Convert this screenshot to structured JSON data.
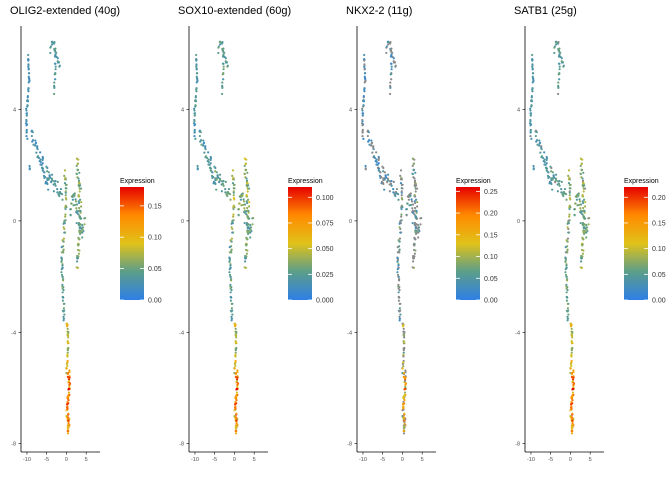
{
  "chart_data": [
    {
      "type": "scatter",
      "title": "OLIG2-extended (40g)",
      "x_ticks": [
        -10,
        -5,
        0,
        5
      ],
      "y_ticks": [
        -8,
        -4,
        0,
        4
      ],
      "xlim": [
        -11.5,
        8.5
      ],
      "ylim": [
        -8.3,
        7.0
      ],
      "color_scale": {
        "title": "Expression",
        "min": 0,
        "max": 0.18,
        "ticks": [
          "0.00",
          "0.05",
          "0.10",
          "0.15"
        ],
        "tick_values": [
          0,
          0.05,
          0.1,
          0.15
        ]
      },
      "profile": "olig",
      "na_fraction": 0.0
    },
    {
      "type": "scatter",
      "title": "SOX10-extended (60g)",
      "x_ticks": [
        -10,
        -5,
        0,
        5
      ],
      "y_ticks": [
        -8,
        -4,
        0,
        4
      ],
      "xlim": [
        -11.5,
        8.5
      ],
      "ylim": [
        -8.3,
        7.0
      ],
      "color_scale": {
        "title": "Expression",
        "min": 0,
        "max": 0.11,
        "ticks": [
          "0.000",
          "0.025",
          "0.050",
          "0.075",
          "0.100"
        ],
        "tick_values": [
          0,
          0.025,
          0.05,
          0.075,
          0.1
        ]
      },
      "profile": "sox",
      "na_fraction": 0.0
    },
    {
      "type": "scatter",
      "title": "NKX2-2 (11g)",
      "x_ticks": [
        -10,
        -5,
        0,
        5
      ],
      "y_ticks": [
        -8,
        -4,
        0,
        4
      ],
      "xlim": [
        -11.5,
        8.5
      ],
      "ylim": [
        -8.3,
        7.0
      ],
      "color_scale": {
        "title": "Expression",
        "min": 0,
        "max": 0.26,
        "ticks": [
          "0.00",
          "0.05",
          "0.10",
          "0.15",
          "0.20",
          "0.25"
        ],
        "tick_values": [
          0,
          0.05,
          0.1,
          0.15,
          0.2,
          0.25
        ]
      },
      "profile": "nkx",
      "na_fraction": 0.55
    },
    {
      "type": "scatter",
      "title": "SATB1 (25g)",
      "x_ticks": [
        -10,
        -5,
        0,
        5
      ],
      "y_ticks": [
        -8,
        -4,
        0,
        4
      ],
      "xlim": [
        -11.5,
        8.5
      ],
      "ylim": [
        -8.3,
        7.0
      ],
      "color_scale": {
        "title": "Expression",
        "min": 0,
        "max": 0.22,
        "ticks": [
          "0.00",
          "0.05",
          "0.10",
          "0.15",
          "0.20"
        ],
        "tick_values": [
          0,
          0.05,
          0.1,
          0.15,
          0.2
        ]
      },
      "profile": "satb",
      "na_fraction": 0.05
    }
  ],
  "colors": {
    "low": "#2e7fe6",
    "mid_low": "#5c9e8a",
    "mid": "#e0c21a",
    "mid_high": "#ff8a00",
    "high": "#e60000",
    "na": "#8a8a8a",
    "axis": "#000000"
  }
}
